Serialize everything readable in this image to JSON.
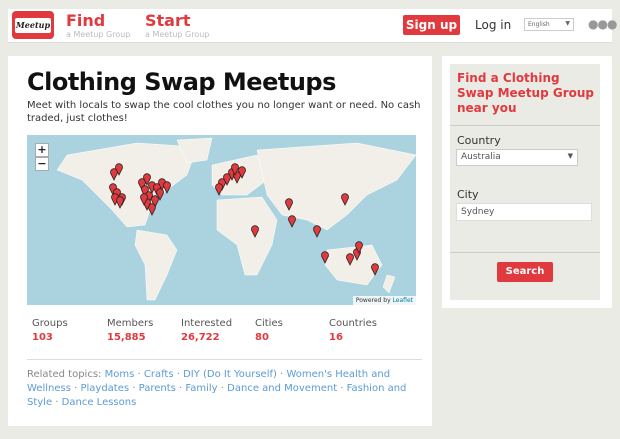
{
  "header": {
    "logo_text": "Meetup",
    "find": "Find",
    "find_sub": "a Meetup Group",
    "start": "Start",
    "start_sub": "a Meetup Group",
    "signup": "Sign up",
    "login": "Log in",
    "language": "English",
    "more_icon": "ellipsis-icon"
  },
  "main": {
    "title": "Clothing Swap Meetups",
    "description": "Meet with locals to swap the cool clothes you no longer want or need. No cash traded, just clothes!",
    "map": {
      "zoom_in": "+",
      "zoom_out": "−",
      "attribution_prefix": "Powered by",
      "attribution_link": "Leaflet"
    },
    "stats": [
      {
        "label": "Groups",
        "value": "103"
      },
      {
        "label": "Members",
        "value": "15,885"
      },
      {
        "label": "Interested",
        "value": "26,722"
      },
      {
        "label": "Cities",
        "value": "80"
      },
      {
        "label": "Countries",
        "value": "16"
      }
    ],
    "related_label": "Related topics:",
    "topics": [
      "Moms",
      "Crafts",
      "DIY (Do It Yourself)",
      "Women's Health and Wellness",
      "Playdates",
      "Parents",
      "Family",
      "Dance and Movement",
      "Fashion and Style",
      "Dance Lessons"
    ]
  },
  "sidebar": {
    "heading": "Find a Clothing Swap Meetup Group near you",
    "country_label": "Country",
    "country_value": "Australia",
    "city_label": "City",
    "city_value": "Sydney",
    "search": "Search"
  },
  "colors": {
    "brand": "#e0393e",
    "water": "#aad3df",
    "link": "#5b9bd5"
  }
}
